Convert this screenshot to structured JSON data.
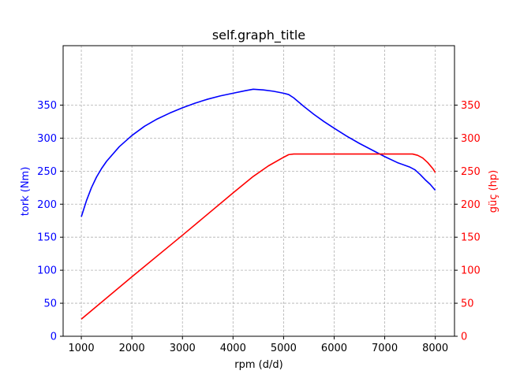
{
  "chart_data": {
    "type": "line",
    "title": "self.graph_title",
    "xlabel": "rpm (d/d)",
    "ylabel_left": "tork (Nm)",
    "ylabel_right": "güç (hp)",
    "xlim": [
      640,
      8380
    ],
    "ylim_left": [
      0,
      440
    ],
    "ylim_right": [
      0,
      440
    ],
    "x_ticks": [
      1000,
      2000,
      3000,
      4000,
      5000,
      6000,
      7000,
      8000
    ],
    "y_ticks_left": [
      0,
      50,
      100,
      150,
      200,
      250,
      300,
      350
    ],
    "y_ticks_right": [
      0,
      50,
      100,
      150,
      200,
      250,
      300,
      350
    ],
    "grid": true,
    "colors": {
      "torque": "#0000ff",
      "power": "#ff0000",
      "grid": "#b0b0b0",
      "axis": "#000000"
    },
    "series": [
      {
        "axis": "left",
        "x": [
          1000,
          1100,
          1200,
          1300,
          1400,
          1500,
          1750,
          2000,
          2250,
          2500,
          2750,
          3000,
          3250,
          3500,
          3750,
          4000,
          4250,
          4400,
          4600,
          4800,
          5000,
          5100,
          5200,
          5400,
          5600,
          5800,
          6000,
          6250,
          6500,
          6750,
          7000,
          7250,
          7500,
          7600,
          7700,
          7800,
          7900,
          8000
        ],
        "y": [
          181,
          205,
          225,
          241,
          254,
          265,
          287,
          304,
          318,
          329,
          338,
          346,
          353,
          359,
          364,
          368,
          372,
          374,
          373,
          371,
          368,
          366,
          361,
          348,
          336,
          325,
          315,
          303,
          292,
          282,
          272,
          263,
          256,
          252,
          245,
          237,
          230,
          221
        ]
      },
      {
        "axis": "right",
        "x": [
          1000,
          2000,
          3000,
          4000,
          4400,
          4700,
          5000,
          5100,
          5200,
          5500,
          6000,
          6500,
          7000,
          7400,
          7550,
          7650,
          7750,
          7850,
          7950,
          8000
        ],
        "y": [
          26,
          90,
          153,
          217,
          242,
          258,
          271,
          275,
          276,
          276,
          276,
          276,
          276,
          276,
          276,
          274,
          270,
          263,
          254,
          248
        ]
      }
    ]
  }
}
